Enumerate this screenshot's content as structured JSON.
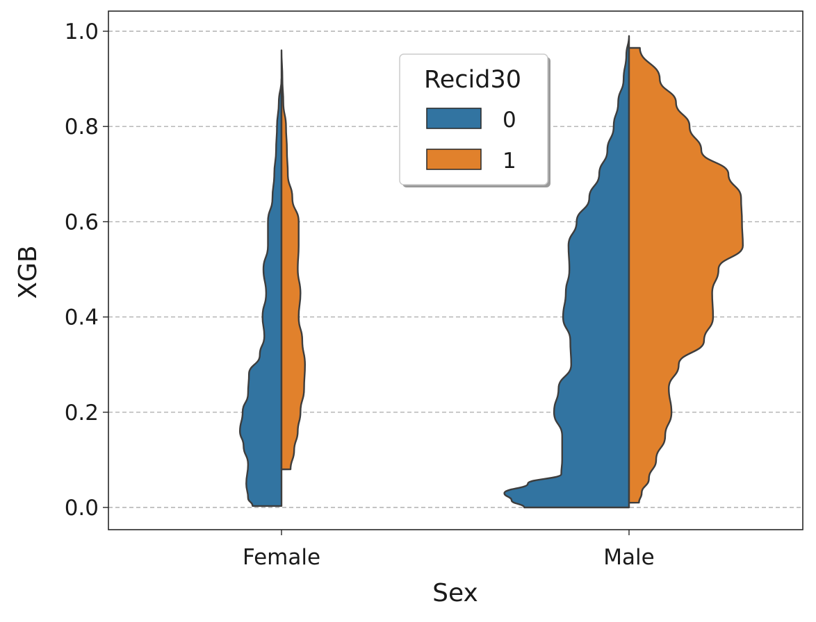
{
  "chart_data": {
    "type": "violin",
    "title": "",
    "xlabel": "Sex",
    "ylabel": "XGB",
    "ylim": [
      -0.05,
      1.04
    ],
    "yticks": [
      "0.0",
      "0.2",
      "0.4",
      "0.6",
      "0.8",
      "1.0"
    ],
    "grid": "horizontal dashed",
    "split": true,
    "categories": [
      "Female",
      "Male"
    ],
    "legend": {
      "title": "Recid30",
      "placement": "top-center",
      "entries": [
        {
          "label": "0",
          "color": "#3274a1"
        },
        {
          "label": "1",
          "color": "#e1812c"
        }
      ]
    },
    "series": [
      {
        "name": "0",
        "color": "#3274a1",
        "violins": [
          {
            "category": "Female",
            "range": [
              0.003,
              0.9
            ],
            "density_y": [
              0.003,
              0.02,
              0.05,
              0.09,
              0.13,
              0.16,
              0.2,
              0.24,
              0.28,
              0.32,
              0.36,
              0.4,
              0.45,
              0.5,
              0.55,
              0.6,
              0.65,
              0.7,
              0.75,
              0.8,
              0.85,
              0.9
            ],
            "density_width": [
              0.32,
              0.37,
              0.39,
              0.37,
              0.42,
              0.46,
              0.43,
              0.37,
              0.36,
              0.24,
              0.19,
              0.21,
              0.17,
              0.2,
              0.15,
              0.15,
              0.1,
              0.08,
              0.06,
              0.05,
              0.03,
              0.0
            ]
          },
          {
            "category": "Male",
            "range": [
              0.0,
              0.99
            ],
            "density_y": [
              0.0,
              0.015,
              0.03,
              0.05,
              0.07,
              0.1,
              0.15,
              0.2,
              0.25,
              0.3,
              0.35,
              0.4,
              0.45,
              0.5,
              0.55,
              0.6,
              0.65,
              0.7,
              0.75,
              0.8,
              0.85,
              0.9,
              0.95,
              0.99
            ],
            "density_width": [
              1.16,
              1.3,
              1.38,
              1.12,
              0.75,
              0.74,
              0.74,
              0.83,
              0.78,
              0.64,
              0.65,
              0.73,
              0.7,
              0.66,
              0.67,
              0.58,
              0.44,
              0.33,
              0.24,
              0.17,
              0.12,
              0.06,
              0.03,
              0.0
            ]
          }
        ]
      },
      {
        "name": "1",
        "color": "#e1812c",
        "violins": [
          {
            "category": "Female",
            "range": [
              0.08,
              0.96
            ],
            "density_y": [
              0.08,
              0.12,
              0.16,
              0.2,
              0.25,
              0.3,
              0.35,
              0.4,
              0.45,
              0.5,
              0.55,
              0.6,
              0.65,
              0.7,
              0.75,
              0.8,
              0.85,
              0.9,
              0.96
            ],
            "density_width": [
              0.1,
              0.14,
              0.18,
              0.21,
              0.25,
              0.26,
              0.23,
              0.19,
              0.21,
              0.18,
              0.19,
              0.19,
              0.12,
              0.07,
              0.06,
              0.05,
              0.02,
              0.01,
              0.0
            ]
          },
          {
            "category": "Male",
            "range": [
              0.01,
              0.965
            ],
            "density_y": [
              0.01,
              0.03,
              0.06,
              0.1,
              0.15,
              0.2,
              0.25,
              0.3,
              0.35,
              0.4,
              0.45,
              0.5,
              0.55,
              0.6,
              0.65,
              0.7,
              0.75,
              0.8,
              0.85,
              0.9,
              0.965
            ],
            "density_width": [
              0.11,
              0.14,
              0.22,
              0.3,
              0.4,
              0.47,
              0.44,
              0.55,
              0.83,
              0.93,
              0.92,
              0.99,
              1.26,
              1.25,
              1.24,
              1.1,
              0.8,
              0.67,
              0.52,
              0.34,
              0.12
            ]
          }
        ]
      }
    ]
  }
}
